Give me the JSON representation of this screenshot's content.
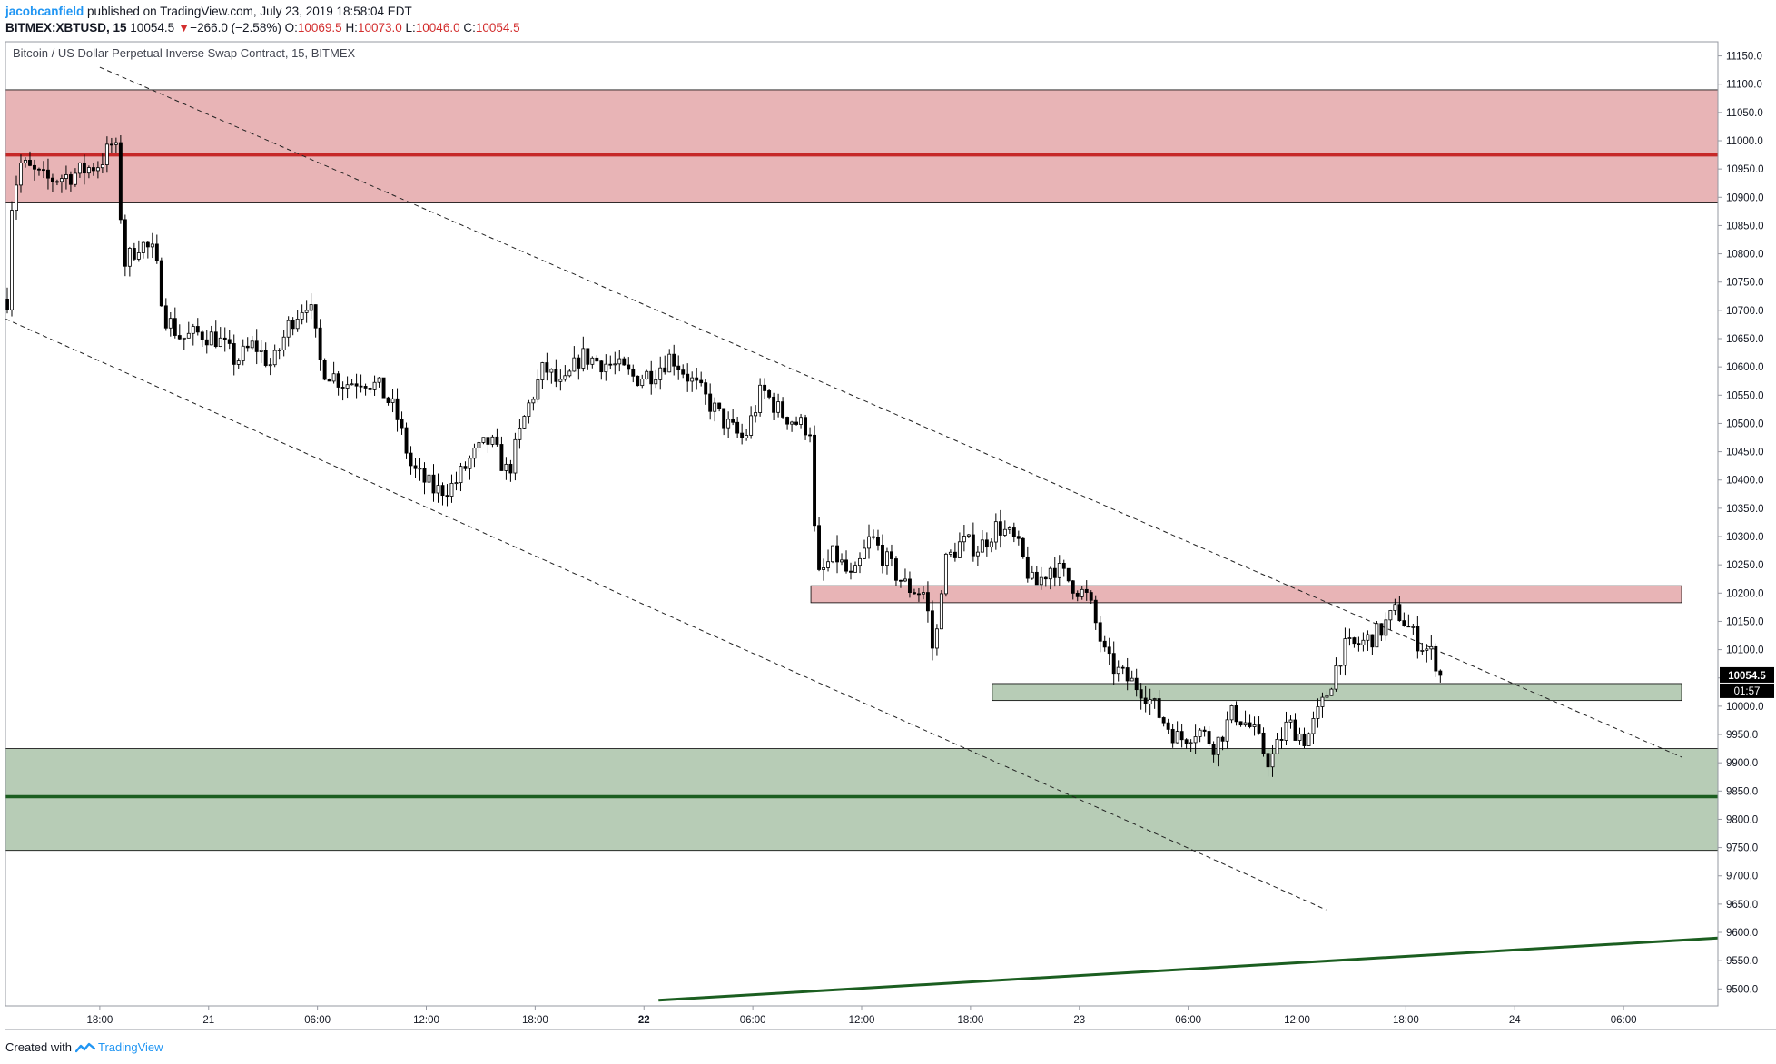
{
  "header": {
    "author": "jacobcanfield",
    "published_text": "published on TradingView.com, July 23, 2019 18:58:04 EDT",
    "symbol": "BITMEX:XBTUSD, 15",
    "last": "10054.5",
    "change_arrow": "▼",
    "change": "−266.0 (−2.58%)",
    "o_label": "O:",
    "o_value": "10069.5",
    "h_label": "H:",
    "h_value": "10073.0",
    "l_label": "L:",
    "l_value": "10046.0",
    "c_label": "C:",
    "c_value": "10054.5"
  },
  "chart_title": "Bitcoin / US Dollar Perpetual Inverse Swap Contract, 15, BITMEX",
  "footer": {
    "created_with": "Created with",
    "brand": "TradingView"
  },
  "colors": {
    "resistance_zone": "#e8b4b6",
    "resistance_line": "#c62828",
    "support_zone": "#b7ccb6",
    "support_line": "#1b5e20",
    "candle_up": "#ffffff",
    "candle_down": "#000000",
    "price_tag": "#000000"
  },
  "chart_data": {
    "type": "candlestick",
    "title": "Bitcoin / US Dollar Perpetual Inverse Swap Contract, 15, BITMEX",
    "y_axis": {
      "ticks": [
        "11150.0",
        "11100.0",
        "11050.0",
        "11000.0",
        "10950.0",
        "10900.0",
        "10850.0",
        "10800.0",
        "10750.0",
        "10700.0",
        "10650.0",
        "10600.0",
        "10550.0",
        "10500.0",
        "10450.0",
        "10400.0",
        "10350.0",
        "10300.0",
        "10250.0",
        "10200.0",
        "10150.0",
        "10100.0",
        "10050.0",
        "10000.0",
        "9950.0",
        "9900.0",
        "9850.0",
        "9800.0",
        "9750.0",
        "9700.0",
        "9650.0",
        "9600.0",
        "9550.0",
        "9500.0"
      ],
      "ylim": [
        9470,
        11175
      ]
    },
    "x_axis": {
      "ticks": [
        {
          "label": "18:00",
          "t": 18,
          "bold": false
        },
        {
          "label": "21",
          "t": 24,
          "bold": false
        },
        {
          "label": "06:00",
          "t": 30,
          "bold": false
        },
        {
          "label": "12:00",
          "t": 36,
          "bold": false
        },
        {
          "label": "18:00",
          "t": 42,
          "bold": false
        },
        {
          "label": "22",
          "t": 48,
          "bold": true
        },
        {
          "label": "06:00",
          "t": 54,
          "bold": false
        },
        {
          "label": "12:00",
          "t": 60,
          "bold": false
        },
        {
          "label": "18:00",
          "t": 66,
          "bold": false
        },
        {
          "label": "23",
          "t": 72,
          "bold": false
        },
        {
          "label": "06:00",
          "t": 78,
          "bold": false
        },
        {
          "label": "12:00",
          "t": 84,
          "bold": false
        },
        {
          "label": "18:00",
          "t": 90,
          "bold": false
        },
        {
          "label": "24",
          "t": 96,
          "bold": false
        },
        {
          "label": "06:00",
          "t": 102,
          "bold": false
        }
      ],
      "unit": "hours since 2019-07-20 00:00",
      "xlim": [
        12.8,
        107.2
      ]
    },
    "candle_path_keypoints": [
      [
        12.9,
        10720
      ],
      [
        13.1,
        10880
      ],
      [
        13.6,
        10960
      ],
      [
        15.0,
        10930
      ],
      [
        16.5,
        10940
      ],
      [
        18.0,
        10960
      ],
      [
        18.8,
        11000
      ],
      [
        19.0,
        10960
      ],
      [
        19.3,
        10780
      ],
      [
        20.2,
        10820
      ],
      [
        21.0,
        10800
      ],
      [
        21.6,
        10690
      ],
      [
        22.5,
        10650
      ],
      [
        23.5,
        10660
      ],
      [
        24.5,
        10650
      ],
      [
        25.5,
        10610
      ],
      [
        26.5,
        10640
      ],
      [
        27.5,
        10600
      ],
      [
        28.5,
        10680
      ],
      [
        29.5,
        10720
      ],
      [
        30.2,
        10600
      ],
      [
        31.5,
        10570
      ],
      [
        32.5,
        10580
      ],
      [
        33.5,
        10560
      ],
      [
        34.3,
        10520
      ],
      [
        35.2,
        10420
      ],
      [
        36.5,
        10380
      ],
      [
        37.5,
        10390
      ],
      [
        38.5,
        10440
      ],
      [
        39.5,
        10470
      ],
      [
        40.5,
        10410
      ],
      [
        41.5,
        10520
      ],
      [
        42.5,
        10600
      ],
      [
        43.5,
        10560
      ],
      [
        44.5,
        10620
      ],
      [
        45.5,
        10610
      ],
      [
        46.5,
        10600
      ],
      [
        47.5,
        10580
      ],
      [
        48.5,
        10590
      ],
      [
        49.5,
        10620
      ],
      [
        50.5,
        10580
      ],
      [
        51.5,
        10540
      ],
      [
        52.5,
        10500
      ],
      [
        53.5,
        10470
      ],
      [
        54.5,
        10560
      ],
      [
        55.5,
        10520
      ],
      [
        56.5,
        10500
      ],
      [
        57.2,
        10490
      ],
      [
        57.5,
        10220
      ],
      [
        58.5,
        10270
      ],
      [
        59.5,
        10220
      ],
      [
        60.5,
        10300
      ],
      [
        61.5,
        10250
      ],
      [
        62.5,
        10210
      ],
      [
        63.5,
        10200
      ],
      [
        64.0,
        10080
      ],
      [
        64.5,
        10250
      ],
      [
        65.5,
        10290
      ],
      [
        66.5,
        10280
      ],
      [
        67.5,
        10320
      ],
      [
        68.5,
        10290
      ],
      [
        69.5,
        10210
      ],
      [
        70.5,
        10250
      ],
      [
        71.5,
        10220
      ],
      [
        72.5,
        10190
      ],
      [
        73.5,
        10080
      ],
      [
        74.5,
        10050
      ],
      [
        75.5,
        10030
      ],
      [
        76.5,
        9980
      ],
      [
        77.5,
        9940
      ],
      [
        78.5,
        9960
      ],
      [
        79.5,
        9930
      ],
      [
        80.5,
        9990
      ],
      [
        81.5,
        9960
      ],
      [
        82.5,
        9900
      ],
      [
        83.5,
        9970
      ],
      [
        84.5,
        9940
      ],
      [
        85.5,
        10010
      ],
      [
        86.5,
        10100
      ],
      [
        87.5,
        10110
      ],
      [
        88.5,
        10130
      ],
      [
        89.5,
        10170
      ],
      [
        90.5,
        10120
      ],
      [
        91.5,
        10090
      ],
      [
        92.0,
        10054.5
      ]
    ],
    "zones": [
      {
        "name": "upper resistance zone",
        "from": 10890,
        "to": 11090,
        "line": 10975
      },
      {
        "name": "lower support zone",
        "from": 9745,
        "to": 9925,
        "line": 9840
      },
      {
        "name": "small resistance box",
        "from": 10183,
        "to": 10213,
        "t_start": 57.2,
        "t_end": 105.2
      },
      {
        "name": "small support box",
        "from": 10010,
        "to": 10040,
        "t_start": 67.2,
        "t_end": 105.2
      }
    ],
    "trendlines": [
      {
        "name": "channel top",
        "style": "dashed",
        "from": [
          18.0,
          11130
        ],
        "to": [
          105.2,
          9910
        ]
      },
      {
        "name": "channel bottom",
        "style": "dashed",
        "from": [
          12.8,
          10685
        ],
        "to": [
          85.6,
          9640
        ]
      },
      {
        "name": "long-term support",
        "style": "solid",
        "from": [
          48.8,
          9480
        ],
        "to": [
          107.2,
          9590
        ]
      }
    ],
    "price_tag": {
      "value": "10054.5",
      "countdown": "01:57",
      "price": 10054.5
    }
  }
}
